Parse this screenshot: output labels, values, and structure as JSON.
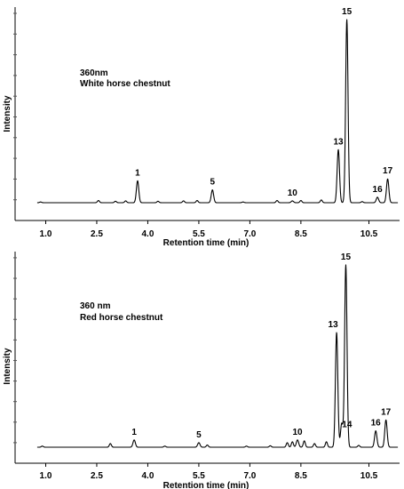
{
  "chart_data": [
    {
      "type": "line",
      "annotation_line1": "360nm",
      "annotation_line2": "White horse chestnut",
      "xlabel": "Retention time (min)",
      "ylabel": "Intensity",
      "xlim": [
        0.1,
        11.4
      ],
      "ylim": [
        0,
        1.0
      ],
      "x_ticks": [
        "1.0",
        "2.5",
        "4.0",
        "5.5",
        "7.0",
        "8.5",
        "10.5"
      ],
      "x_tick_values": [
        1.0,
        2.5,
        4.0,
        5.5,
        7.0,
        8.5,
        10.5
      ],
      "grid": false,
      "peaks": [
        {
          "label": "1",
          "rt": 3.7,
          "height": 0.12
        },
        {
          "label": "5",
          "rt": 5.9,
          "height": 0.07
        },
        {
          "label": "10",
          "rt": 8.25,
          "height": 0.01
        },
        {
          "label": "13",
          "rt": 9.6,
          "height": 0.29
        },
        {
          "label": "15",
          "rt": 9.85,
          "height": 1.0
        },
        {
          "label": "16",
          "rt": 10.75,
          "height": 0.03
        },
        {
          "label": "17",
          "rt": 11.05,
          "height": 0.13
        }
      ],
      "minor_peaks": [
        {
          "rt": 0.85,
          "height": 0.004
        },
        {
          "rt": 2.55,
          "height": 0.012
        },
        {
          "rt": 3.05,
          "height": 0.008
        },
        {
          "rt": 3.35,
          "height": 0.01
        },
        {
          "rt": 4.3,
          "height": 0.008
        },
        {
          "rt": 5.05,
          "height": 0.01
        },
        {
          "rt": 5.45,
          "height": 0.012
        },
        {
          "rt": 6.8,
          "height": 0.004
        },
        {
          "rt": 7.8,
          "height": 0.012
        },
        {
          "rt": 8.5,
          "height": 0.012
        },
        {
          "rt": 9.1,
          "height": 0.015
        },
        {
          "rt": 10.3,
          "height": 0.006
        }
      ]
    },
    {
      "type": "line",
      "annotation_line1": "360 nm",
      "annotation_line2": "Red horse chestnut",
      "xlabel": "Retention time (min)",
      "ylabel": "Intensity",
      "xlim": [
        0.1,
        11.4
      ],
      "ylim": [
        0,
        1.0
      ],
      "x_ticks": [
        "1.0",
        "2.5",
        "4.0",
        "5.5",
        "7.0",
        "8.5",
        "10.5"
      ],
      "x_tick_values": [
        1.0,
        2.5,
        4.0,
        5.5,
        7.0,
        8.5,
        10.5
      ],
      "grid": false,
      "peaks": [
        {
          "label": "1",
          "rt": 3.6,
          "height": 0.04
        },
        {
          "label": "5",
          "rt": 5.5,
          "height": 0.025
        },
        {
          "label": "10",
          "rt": 8.4,
          "height": 0.04
        },
        {
          "label": "13",
          "rt": 9.55,
          "height": 0.63
        },
        {
          "label": "14",
          "rt": 9.7,
          "height": 0.13
        },
        {
          "label": "15",
          "rt": 9.82,
          "height": 1.0
        },
        {
          "label": "16",
          "rt": 10.7,
          "height": 0.09
        },
        {
          "label": "17",
          "rt": 11.0,
          "height": 0.15
        }
      ],
      "minor_peaks": [
        {
          "rt": 0.9,
          "height": 0.006
        },
        {
          "rt": 2.9,
          "height": 0.02
        },
        {
          "rt": 4.5,
          "height": 0.006
        },
        {
          "rt": 5.75,
          "height": 0.012
        },
        {
          "rt": 6.9,
          "height": 0.006
        },
        {
          "rt": 7.6,
          "height": 0.008
        },
        {
          "rt": 8.1,
          "height": 0.025
        },
        {
          "rt": 8.25,
          "height": 0.03
        },
        {
          "rt": 8.6,
          "height": 0.035
        },
        {
          "rt": 8.9,
          "height": 0.02
        },
        {
          "rt": 9.25,
          "height": 0.03
        },
        {
          "rt": 10.2,
          "height": 0.01
        }
      ]
    }
  ]
}
